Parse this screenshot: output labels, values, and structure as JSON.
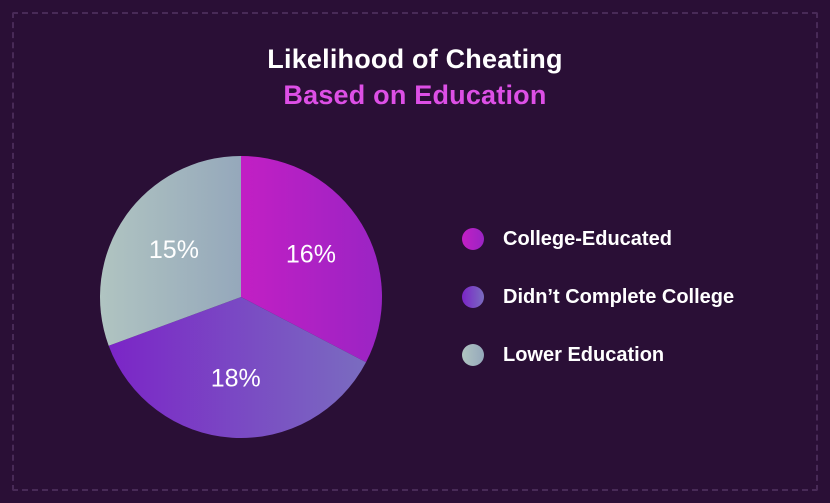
{
  "chart_data": {
    "type": "pie",
    "title": "Likelihood of Cheating",
    "subtitle": "Based on Education",
    "categories": [
      "College-Educated",
      "Didn’t Complete College",
      "Lower Education"
    ],
    "values": [
      16,
      18,
      15
    ],
    "labels": [
      "16%",
      "18%",
      "15%"
    ],
    "colors": [
      [
        "#c21fc4",
        "#9a24c4"
      ],
      [
        "#7b25c7",
        "#7a6cc0"
      ],
      [
        "#b0c4c1",
        "#95a8bb"
      ]
    ],
    "legend_position": "right"
  },
  "colors": {
    "background": "#2a0f36",
    "title": "#ffffff",
    "subtitle": "#dd4fe6"
  }
}
